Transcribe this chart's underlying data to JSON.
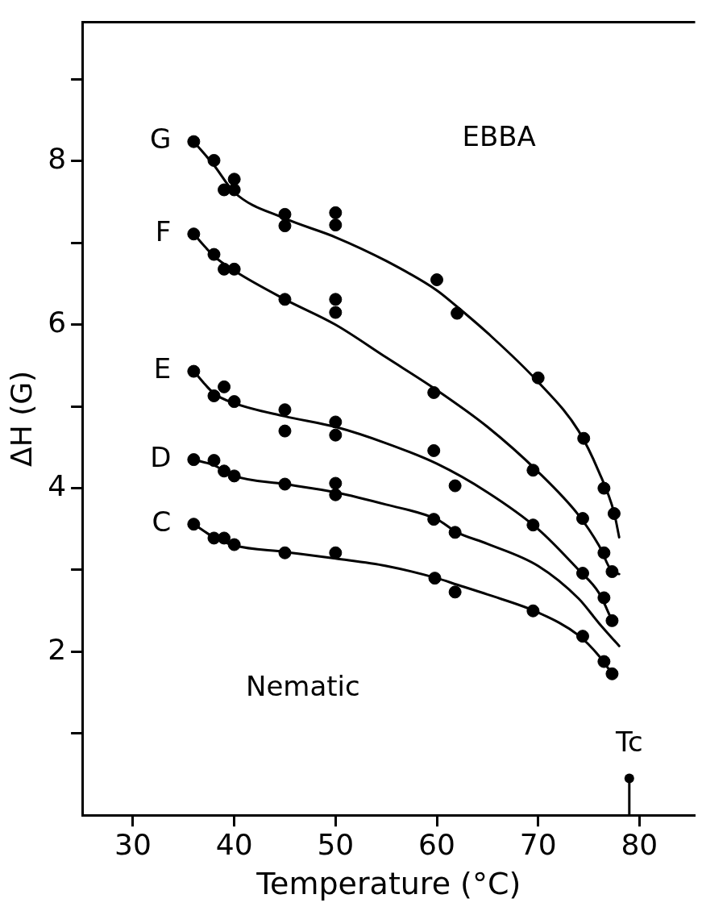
{
  "chart_data": {
    "type": "scatter",
    "title": "EBBA",
    "xlabel": "Temperature (°C)",
    "ylabel": "ΔH (G)",
    "xlim": [
      25,
      85.5
    ],
    "xticks": [
      30,
      40,
      50,
      60,
      70,
      80
    ],
    "ylim": [
      0,
      9.7
    ],
    "yticks": [
      {
        "value": 1,
        "label": null
      },
      2,
      {
        "value": 3,
        "label": null
      },
      4,
      {
        "value": 5,
        "label": null
      },
      6,
      {
        "value": 7,
        "label": null
      },
      8,
      {
        "value": 9,
        "label": null
      }
    ],
    "grid": false,
    "marker": "circle",
    "line_style": "solid",
    "annotations": [
      "Nematic",
      {
        "text": "Tc",
        "x": 79,
        "y": 0.45
      }
    ],
    "series": [
      {
        "name": "G",
        "color": "#000000",
        "x": [
          36,
          38,
          39,
          40,
          40,
          45,
          45,
          50,
          50,
          60,
          62,
          70,
          74.5,
          76.5,
          77.5
        ],
        "values": [
          8.24,
          8.01,
          7.65,
          7.78,
          7.65,
          7.35,
          7.21,
          7.37,
          7.22,
          6.55,
          6.14,
          5.35,
          4.61,
          4.0,
          3.69
        ]
      },
      {
        "type": "line",
        "marker": "none",
        "color": "#000000",
        "x": [
          36,
          38,
          40,
          45,
          50,
          55,
          60,
          62,
          65,
          70,
          74,
          76,
          77.5,
          78
        ],
        "values": [
          8.24,
          7.95,
          7.62,
          7.3,
          7.07,
          6.78,
          6.42,
          6.22,
          5.9,
          5.3,
          4.7,
          4.2,
          3.7,
          3.4
        ]
      },
      {
        "name": "F",
        "color": "#000000",
        "x": [
          36,
          38,
          39,
          40,
          45,
          50,
          50,
          59.7,
          69.5,
          74.4,
          76.5,
          77.3
        ],
        "values": [
          7.11,
          6.86,
          6.68,
          6.68,
          6.31,
          6.31,
          6.15,
          5.17,
          4.22,
          3.63,
          3.21,
          2.98
        ]
      },
      {
        "type": "line",
        "marker": "none",
        "color": "#000000",
        "x": [
          36,
          38,
          40,
          45,
          50,
          55,
          60,
          65,
          70,
          74,
          76,
          77.3,
          78
        ],
        "values": [
          7.11,
          6.84,
          6.66,
          6.31,
          6.0,
          5.6,
          5.2,
          4.75,
          4.2,
          3.67,
          3.3,
          2.98,
          2.95
        ]
      },
      {
        "name": "E",
        "color": "#000000",
        "x": [
          36,
          38,
          39,
          40,
          45,
          45,
          50,
          50,
          59.7,
          61.8,
          69.5,
          74.4,
          76.5,
          77.3
        ],
        "values": [
          5.43,
          5.13,
          5.24,
          5.06,
          4.96,
          4.7,
          4.81,
          4.65,
          4.46,
          4.03,
          3.55,
          2.96,
          2.66,
          2.38
        ]
      },
      {
        "type": "line",
        "marker": "none",
        "color": "#000000",
        "x": [
          36,
          38,
          40,
          45,
          50,
          55,
          60,
          65,
          70,
          74,
          76,
          77.3
        ],
        "values": [
          5.43,
          5.16,
          5.04,
          4.88,
          4.75,
          4.55,
          4.3,
          3.95,
          3.5,
          3.0,
          2.72,
          2.38
        ]
      },
      {
        "name": "D",
        "color": "#000000",
        "x": [
          36,
          38,
          39,
          40,
          45,
          50,
          50,
          59.7,
          61.8
        ],
        "values": [
          4.35,
          4.34,
          4.21,
          4.15,
          4.05,
          4.06,
          3.92,
          3.62,
          3.46
        ]
      },
      {
        "type": "line",
        "marker": "none",
        "color": "#000000",
        "x": [
          36,
          38,
          40,
          45,
          50,
          55,
          60,
          62,
          65,
          70,
          74,
          76,
          78
        ],
        "values": [
          4.35,
          4.28,
          4.15,
          4.05,
          3.95,
          3.8,
          3.62,
          3.46,
          3.32,
          3.05,
          2.65,
          2.35,
          2.07
        ]
      },
      {
        "name": "C",
        "color": "#000000",
        "x": [
          36,
          38,
          39,
          40,
          45,
          50,
          59.8,
          61.8,
          69.5,
          74.4,
          76.5,
          77.3
        ],
        "values": [
          3.56,
          3.39,
          3.39,
          3.31,
          3.21,
          3.21,
          2.9,
          2.73,
          2.5,
          2.19,
          1.88,
          1.73
        ]
      },
      {
        "type": "line",
        "marker": "none",
        "color": "#000000",
        "x": [
          36,
          38,
          40,
          45,
          50,
          55,
          60,
          62,
          65,
          70,
          74,
          76,
          77.3
        ],
        "values": [
          3.56,
          3.4,
          3.3,
          3.22,
          3.14,
          3.05,
          2.9,
          2.82,
          2.7,
          2.48,
          2.2,
          1.95,
          1.73
        ]
      }
    ]
  }
}
